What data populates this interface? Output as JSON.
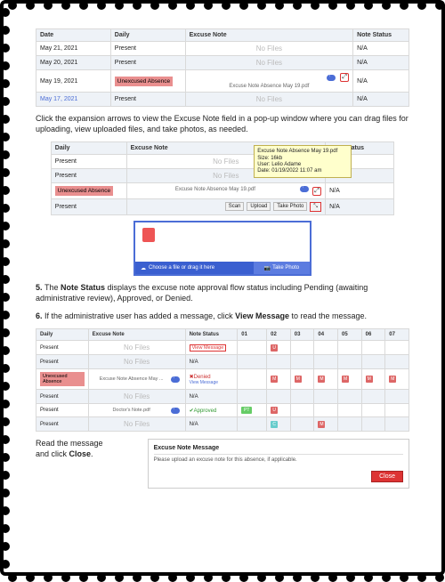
{
  "table1": {
    "headers": {
      "date": "Date",
      "daily": "Daily",
      "excuse": "Excuse Note",
      "status": "Note Status"
    },
    "rows": [
      {
        "date": "May 21, 2021",
        "daily": "Present",
        "excuse_nofiles": "No Files",
        "status": "N/A",
        "shade": false
      },
      {
        "date": "May 20, 2021",
        "daily": "Present",
        "excuse_nofiles": "No Files",
        "status": "N/A",
        "shade": true
      },
      {
        "date": "May 19, 2021",
        "daily": "Unexcused Absence",
        "excuse_file": "Excuse Note Absence May 19.pdf",
        "status": "N/A",
        "shade": false,
        "has_upload": true,
        "has_expand": true
      },
      {
        "date": "May 17, 2021",
        "daily": "Present",
        "excuse_nofiles": "No Files",
        "status": "N/A",
        "shade": true,
        "link_date": true
      }
    ]
  },
  "para1": "Click the expansion arrows to view the Excuse Note field in a pop-up window where you can drag files for uploading, view uploaded files, and take photos, as needed.",
  "table2": {
    "headers": {
      "daily": "Daily",
      "excuse": "Excuse Note",
      "status": "Note Status"
    },
    "rows": [
      {
        "daily": "Present",
        "excuse_nofiles": "No Files",
        "status": "N/A"
      },
      {
        "daily": "Present",
        "excuse_nofiles": "No Files",
        "status": ""
      },
      {
        "daily": "Unexcused Absence",
        "excuse_file": "Excuse Note Absence May 19.pdf",
        "status": "N/A",
        "has_upload": true,
        "has_expand": true
      },
      {
        "daily": "Present",
        "buttons": [
          "Scan",
          "Upload",
          "Take Photo"
        ],
        "status": "N/A",
        "pink_expand": true
      }
    ],
    "tooltip": {
      "l1": "Excuse Note Absence May 19.pdf",
      "l2": "Size: 16kb",
      "l3": "User: Lelio Adame",
      "l4": "Date: 01/19/2022 11:07 am"
    }
  },
  "panel2": {
    "choose": "Choose a file or drag it here",
    "take": "Take Photo"
  },
  "para5a": "5. ",
  "para5b": "The ",
  "para5c": "Note Status",
  "para5d": " displays the excuse note approval flow status including Pending (awaiting administrative review), Approved, or Denied.",
  "para6a": "6. ",
  "para6b": "If the administrative user has added a message, click ",
  "para6c": "View Message",
  "para6d": " to read the message.",
  "table3": {
    "headers": {
      "daily": "Daily",
      "excuse": "Excuse Note",
      "status": "Note Status",
      "d01": "01",
      "d02": "02",
      "d03": "03",
      "d04": "04",
      "d05": "05",
      "d06": "06",
      "d07": "07"
    },
    "rows": [
      {
        "daily": "Present",
        "excuse_nofiles": "No Files",
        "status_view": "View Message",
        "g": [
          "",
          "U",
          "",
          "",
          "",
          "",
          ""
        ]
      },
      {
        "daily": "Present",
        "excuse_nofiles": "No Files",
        "status": "N/A",
        "g": [
          "",
          "",
          "",
          "",
          "",
          "",
          ""
        ]
      },
      {
        "daily": "Unexcused Absence",
        "excuse_file": "Excuse Note Absence May ...",
        "status_denied": "Denied",
        "status_view2": "View Message",
        "g": [
          "",
          "M",
          "M",
          "M",
          "M",
          "M",
          "M"
        ],
        "has_upload": true
      },
      {
        "daily": "Present",
        "excuse_nofiles": "No Files",
        "status": "N/A",
        "g": [
          "",
          "",
          "",
          "",
          "",
          "",
          ""
        ]
      },
      {
        "daily": "Present",
        "excuse_file": "Doctor's Note.pdf",
        "status_approved": "Approved",
        "g": [
          "PT",
          "U",
          "",
          "",
          "",
          "",
          ""
        ],
        "has_upload": true
      },
      {
        "daily": "Present",
        "excuse_nofiles": "No Files",
        "status": "N/A",
        "g": [
          "",
          "C",
          "",
          "M",
          "",
          "",
          ""
        ]
      }
    ]
  },
  "readmsg": {
    "left1": "Read the message",
    "left2": "and click ",
    "left3": "Close",
    "left4": "."
  },
  "msgbox": {
    "title": "Excuse Note Message",
    "body": "Please upload an excuse note for this absence, if applicable.",
    "close": "Close"
  },
  "colors": {
    "accent": "#4b6dd6",
    "danger": "#d33",
    "unexcused": "#e98f8f",
    "tooltip": "#ffffcc"
  }
}
